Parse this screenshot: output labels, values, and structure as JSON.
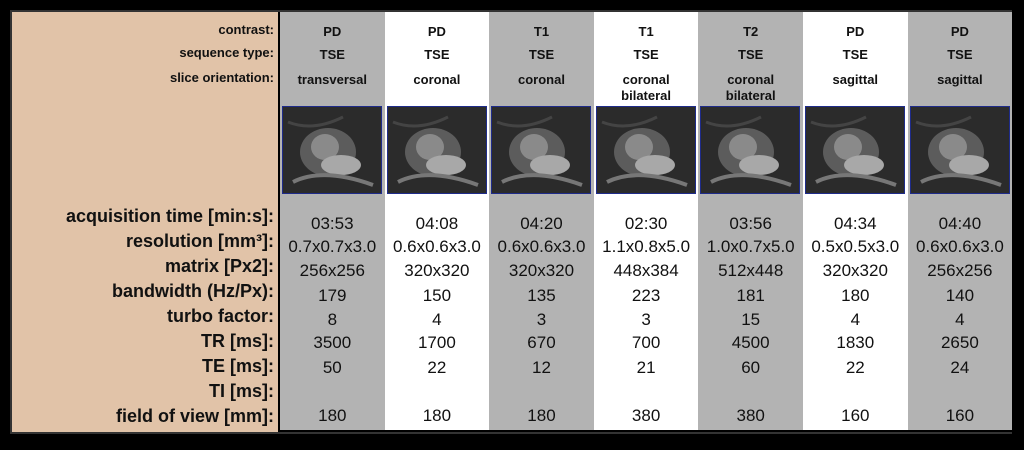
{
  "labels": {
    "contrast": "contrast:",
    "sequence_type": "sequence type:",
    "slice_orientation": "slice orientation:",
    "acquisition_time": "acquisition time [min:s]:",
    "resolution": "resolution [mm³]:",
    "matrix": "matrix [Px2]:",
    "bandwidth": "bandwidth (Hz/Px):",
    "turbo_factor": "turbo factor:",
    "tr": "TR [ms]:",
    "te": "TE [ms]:",
    "ti": "TI [ms]:",
    "fov": "field of view [mm]:"
  },
  "columns": [
    {
      "contrast": "PD",
      "sequence": "TSE",
      "orientation": "transversal",
      "orientation2": "",
      "time": "03:53",
      "resolution": "0.7x0.7x3.0",
      "matrix": "256x256",
      "bandwidth": "179",
      "turbo": "8",
      "tr": "3500",
      "te": "50",
      "ti": "",
      "fov": "180",
      "bg": "gray"
    },
    {
      "contrast": "PD",
      "sequence": "TSE",
      "orientation": "coronal",
      "orientation2": "",
      "time": "04:08",
      "resolution": "0.6x0.6x3.0",
      "matrix": "320x320",
      "bandwidth": "150",
      "turbo": "4",
      "tr": "1700",
      "te": "22",
      "ti": "",
      "fov": "180",
      "bg": "white"
    },
    {
      "contrast": "T1",
      "sequence": "TSE",
      "orientation": "coronal",
      "orientation2": "",
      "time": "04:20",
      "resolution": "0.6x0.6x3.0",
      "matrix": "320x320",
      "bandwidth": "135",
      "turbo": "3",
      "tr": "670",
      "te": "12",
      "ti": "",
      "fov": "180",
      "bg": "gray"
    },
    {
      "contrast": "T1",
      "sequence": "TSE",
      "orientation": "coronal",
      "orientation2": "bilateral",
      "time": "02:30",
      "resolution": "1.1x0.8x5.0",
      "matrix": "448x384",
      "bandwidth": "223",
      "turbo": "3",
      "tr": "700",
      "te": "21",
      "ti": "",
      "fov": "380",
      "bg": "white"
    },
    {
      "contrast": "T2",
      "sequence": "TSE",
      "orientation": "coronal",
      "orientation2": "bilateral",
      "time": "03:56",
      "resolution": "1.0x0.7x5.0",
      "matrix": "512x448",
      "bandwidth": "181",
      "turbo": "15",
      "tr": "4500",
      "te": "60",
      "ti": "",
      "fov": "380",
      "bg": "gray"
    },
    {
      "contrast": "PD",
      "sequence": "TSE",
      "orientation": "sagittal",
      "orientation2": "",
      "time": "04:34",
      "resolution": "0.5x0.5x3.0",
      "matrix": "320x320",
      "bandwidth": "180",
      "turbo": "4",
      "tr": "1830",
      "te": "22",
      "ti": "",
      "fov": "160",
      "bg": "white"
    },
    {
      "contrast": "PD",
      "sequence": "TSE",
      "orientation": "sagittal",
      "orientation2": "",
      "time": "04:40",
      "resolution": "0.6x0.6x3.0",
      "matrix": "256x256",
      "bandwidth": "140",
      "turbo": "4",
      "tr": "2650",
      "te": "24",
      "ti": "",
      "fov": "160",
      "bg": "gray"
    }
  ]
}
